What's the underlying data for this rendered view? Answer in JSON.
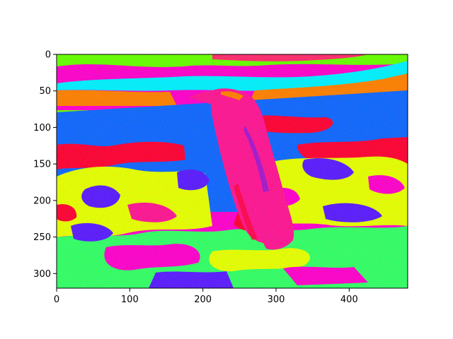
{
  "figure": {
    "image_description_colors": {
      "sky_top": "#ff00cc",
      "band_green": "#66ff00",
      "band_cyan": "#00f0ff",
      "band_orange": "#ff7f00",
      "water_blue": "#0f66ff",
      "red": "#ff0033",
      "penguin_magenta": "#ff1493",
      "violet": "#5a1aff",
      "yellow": "#e6ff00",
      "lime": "#33ff66"
    },
    "x_axis": {
      "range": [
        0,
        480
      ],
      "ticks": [
        {
          "value": 0,
          "label": "0"
        },
        {
          "value": 100,
          "label": "100"
        },
        {
          "value": 200,
          "label": "200"
        },
        {
          "value": 300,
          "label": "300"
        },
        {
          "value": 400,
          "label": "400"
        }
      ]
    },
    "y_axis": {
      "range": [
        0,
        320
      ],
      "inverted": true,
      "ticks": [
        {
          "value": 0,
          "label": "0"
        },
        {
          "value": 50,
          "label": "50"
        },
        {
          "value": 100,
          "label": "100"
        },
        {
          "value": 150,
          "label": "150"
        },
        {
          "value": 200,
          "label": "200"
        },
        {
          "value": 250,
          "label": "250"
        },
        {
          "value": 300,
          "label": "300"
        }
      ]
    }
  }
}
